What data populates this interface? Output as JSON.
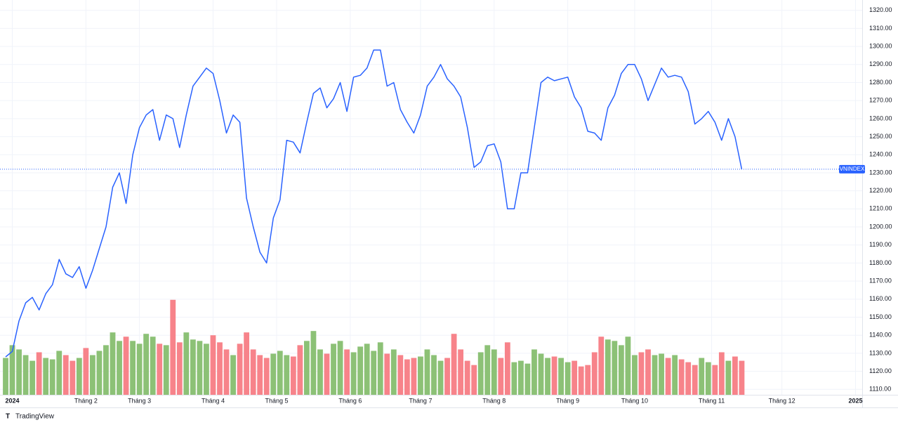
{
  "chart_data": {
    "type": "line",
    "series_label": "VNINDEX",
    "brand": "TradingView",
    "xlim": [
      0,
      128
    ],
    "xticks": [
      {
        "value": 1,
        "label": "2024"
      },
      {
        "value": 12,
        "label": "Tháng 2"
      },
      {
        "value": 20,
        "label": "Tháng 3"
      },
      {
        "value": 31,
        "label": "Tháng 4"
      },
      {
        "value": 40.5,
        "label": "Tháng 5"
      },
      {
        "value": 51.5,
        "label": "Tháng 6"
      },
      {
        "value": 62,
        "label": "Tháng 7"
      },
      {
        "value": 73,
        "label": "Tháng 8"
      },
      {
        "value": 84,
        "label": "Tháng 9"
      },
      {
        "value": 94,
        "label": "Tháng 10"
      },
      {
        "value": 105.5,
        "label": "Tháng 11"
      },
      {
        "value": 116,
        "label": "Tháng 12"
      },
      {
        "value": 127,
        "label": "2025"
      }
    ],
    "ylim": [
      1107,
      1323
    ],
    "yticks": [
      {
        "value": 1110,
        "label": "1110.00"
      },
      {
        "value": 1120,
        "label": "1120.00"
      },
      {
        "value": 1130,
        "label": "1130.00"
      },
      {
        "value": 1140,
        "label": "1140.00"
      },
      {
        "value": 1150,
        "label": "1150.00"
      },
      {
        "value": 1160,
        "label": "1160.00"
      },
      {
        "value": 1170,
        "label": "1170.00"
      },
      {
        "value": 1180,
        "label": "1180.00"
      },
      {
        "value": 1190,
        "label": "1190.00"
      },
      {
        "value": 1200,
        "label": "1200.00"
      },
      {
        "value": 1210,
        "label": "1210.00"
      },
      {
        "value": 1220,
        "label": "1220.00"
      },
      {
        "value": 1230,
        "label": "1230.00"
      },
      {
        "value": 1240,
        "label": "1240.00"
      },
      {
        "value": 1250,
        "label": "1250.00"
      },
      {
        "value": 1260,
        "label": "1260.00"
      },
      {
        "value": 1270,
        "label": "1270.00"
      },
      {
        "value": 1280,
        "label": "1280.00"
      },
      {
        "value": 1290,
        "label": "1290.00"
      },
      {
        "value": 1300,
        "label": "1300.00"
      },
      {
        "value": 1310,
        "label": "1310.00"
      },
      {
        "value": 1320,
        "label": "1320.00"
      }
    ],
    "y2lim": [
      0,
      5500
    ],
    "grid": true,
    "series": [
      {
        "name": "VNINDEX",
        "color": "#2962ff",
        "values": [
          1128,
          1131,
          1148,
          1158,
          1161,
          1154,
          1163,
          1168,
          1182,
          1174,
          1172,
          1178,
          1166,
          1176,
          1188,
          1200,
          1222,
          1230,
          1213,
          1240,
          1255,
          1262,
          1265,
          1248,
          1262,
          1260,
          1244,
          1262,
          1278,
          1283,
          1288,
          1285,
          1270,
          1252,
          1262,
          1258,
          1216,
          1200,
          1186,
          1180,
          1205,
          1215,
          1248,
          1247,
          1241,
          1258,
          1274,
          1277,
          1266,
          1271,
          1280,
          1264,
          1283,
          1284,
          1288,
          1298,
          1298,
          1278,
          1280,
          1265,
          1258,
          1252,
          1262,
          1278,
          1283,
          1290,
          1282,
          1278,
          1272,
          1255,
          1233,
          1236,
          1245,
          1246,
          1236,
          1210,
          1210,
          1230,
          1230,
          1255,
          1280,
          1283,
          1281,
          1282,
          1283,
          1272,
          1266,
          1253,
          1252,
          1248,
          1266,
          1273,
          1285,
          1290,
          1290,
          1282,
          1270,
          1279,
          1288,
          1283,
          1284,
          1283,
          1275,
          1257,
          1260,
          1264,
          1258,
          1248,
          1260,
          1250,
          1232
        ]
      },
      {
        "name": "Volume",
        "axis": "y2",
        "up_color": "#8cc176",
        "down_color": "#f7838a",
        "values": [
          520,
          700,
          640,
          560,
          480,
          600,
          520,
          500,
          620,
          560,
          480,
          520,
          660,
          560,
          620,
          700,
          880,
          760,
          820,
          760,
          720,
          860,
          820,
          720,
          700,
          1340,
          740,
          880,
          780,
          760,
          720,
          840,
          740,
          640,
          560,
          720,
          880,
          640,
          560,
          520,
          580,
          620,
          560,
          540,
          700,
          760,
          900,
          640,
          580,
          720,
          760,
          640,
          600,
          680,
          720,
          620,
          740,
          580,
          640,
          560,
          500,
          520,
          540,
          640,
          560,
          480,
          520,
          860,
          640,
          480,
          420,
          600,
          700,
          640,
          520,
          740,
          460,
          480,
          440,
          640,
          580,
          520,
          540,
          520,
          460,
          480,
          400,
          420,
          600,
          820,
          780,
          760,
          700,
          820,
          560,
          600,
          640,
          560,
          580,
          520,
          560,
          500,
          460,
          420,
          520,
          460,
          420,
          600,
          480,
          540,
          480
        ]
      }
    ]
  }
}
